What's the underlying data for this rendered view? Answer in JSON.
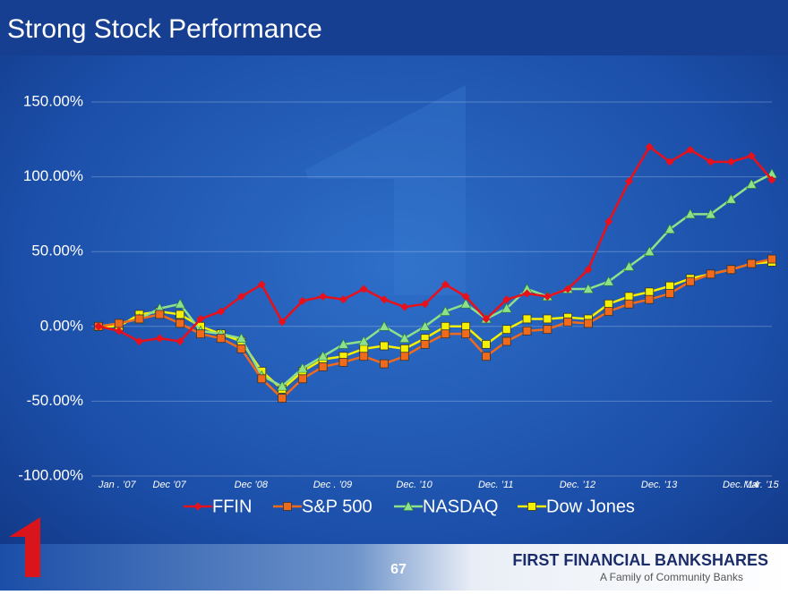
{
  "chart_data": {
    "type": "line",
    "title": "Strong Stock Performance",
    "categories": [
      "Jan . ’07",
      null,
      null,
      null,
      "Dec ’07",
      null,
      null,
      null,
      "Dec ’08",
      null,
      null,
      null,
      "Dec . ’09",
      null,
      null,
      null,
      "Dec. ’10",
      null,
      null,
      null,
      "Dec. ’11",
      null,
      null,
      null,
      "Dec. ’12",
      null,
      null,
      null,
      "Dec. ’13",
      null,
      null,
      null,
      "Dec. ’14",
      "Mar. ’15"
    ],
    "series": [
      {
        "name": "FFIN",
        "color": "#e8101a",
        "marker": "diamond",
        "values": [
          0,
          -3,
          -10,
          -8,
          -10,
          5,
          10,
          20,
          28,
          3,
          17,
          20,
          18,
          25,
          18,
          13,
          15,
          28,
          20,
          5,
          18,
          22,
          20,
          25,
          38,
          70,
          97,
          120,
          110,
          118,
          110,
          110,
          114,
          98
        ]
      },
      {
        "name": "S&P 500",
        "color": "#f06a1c",
        "marker": "square",
        "values": [
          0,
          2,
          5,
          8,
          2,
          -5,
          -8,
          -15,
          -35,
          -48,
          -35,
          -27,
          -24,
          -20,
          -25,
          -20,
          -12,
          -5,
          -5,
          -20,
          -10,
          -3,
          -2,
          3,
          2,
          10,
          15,
          18,
          22,
          30,
          35,
          38,
          42,
          45
        ]
      },
      {
        "name": "NASDAQ",
        "color": "#8fe08a",
        "marker": "triangle",
        "values": [
          0,
          2,
          5,
          12,
          15,
          -3,
          -5,
          -8,
          -33,
          -40,
          -28,
          -20,
          -12,
          -10,
          0,
          -8,
          0,
          10,
          15,
          5,
          12,
          25,
          20,
          25,
          25,
          30,
          40,
          50,
          65,
          75,
          75,
          85,
          95,
          102
        ]
      },
      {
        "name": "Dow Jones",
        "color": "#f5f000",
        "marker": "square",
        "values": [
          0,
          0,
          8,
          10,
          8,
          0,
          -5,
          -10,
          -30,
          -42,
          -30,
          -22,
          -20,
          -15,
          -13,
          -15,
          -8,
          0,
          0,
          -12,
          -2,
          5,
          5,
          6,
          5,
          15,
          20,
          23,
          27,
          32,
          35,
          38,
          42,
          43
        ]
      }
    ],
    "ylim": [
      -100,
      150
    ],
    "yticks": [
      {
        "value": -100,
        "label": "-100.00%"
      },
      {
        "value": -50,
        "label": "-50.00%"
      },
      {
        "value": 0,
        "label": "0.00%"
      },
      {
        "value": 50,
        "label": "50.00%"
      },
      {
        "value": 100,
        "label": "100.00%"
      },
      {
        "value": 150,
        "label": "150.00%"
      }
    ],
    "grid": true,
    "legend": "bottom"
  },
  "footer": {
    "page": "67",
    "company": "FIRST FINANCIAL BANKSHARES",
    "tagline": "A Family of Community Banks"
  }
}
